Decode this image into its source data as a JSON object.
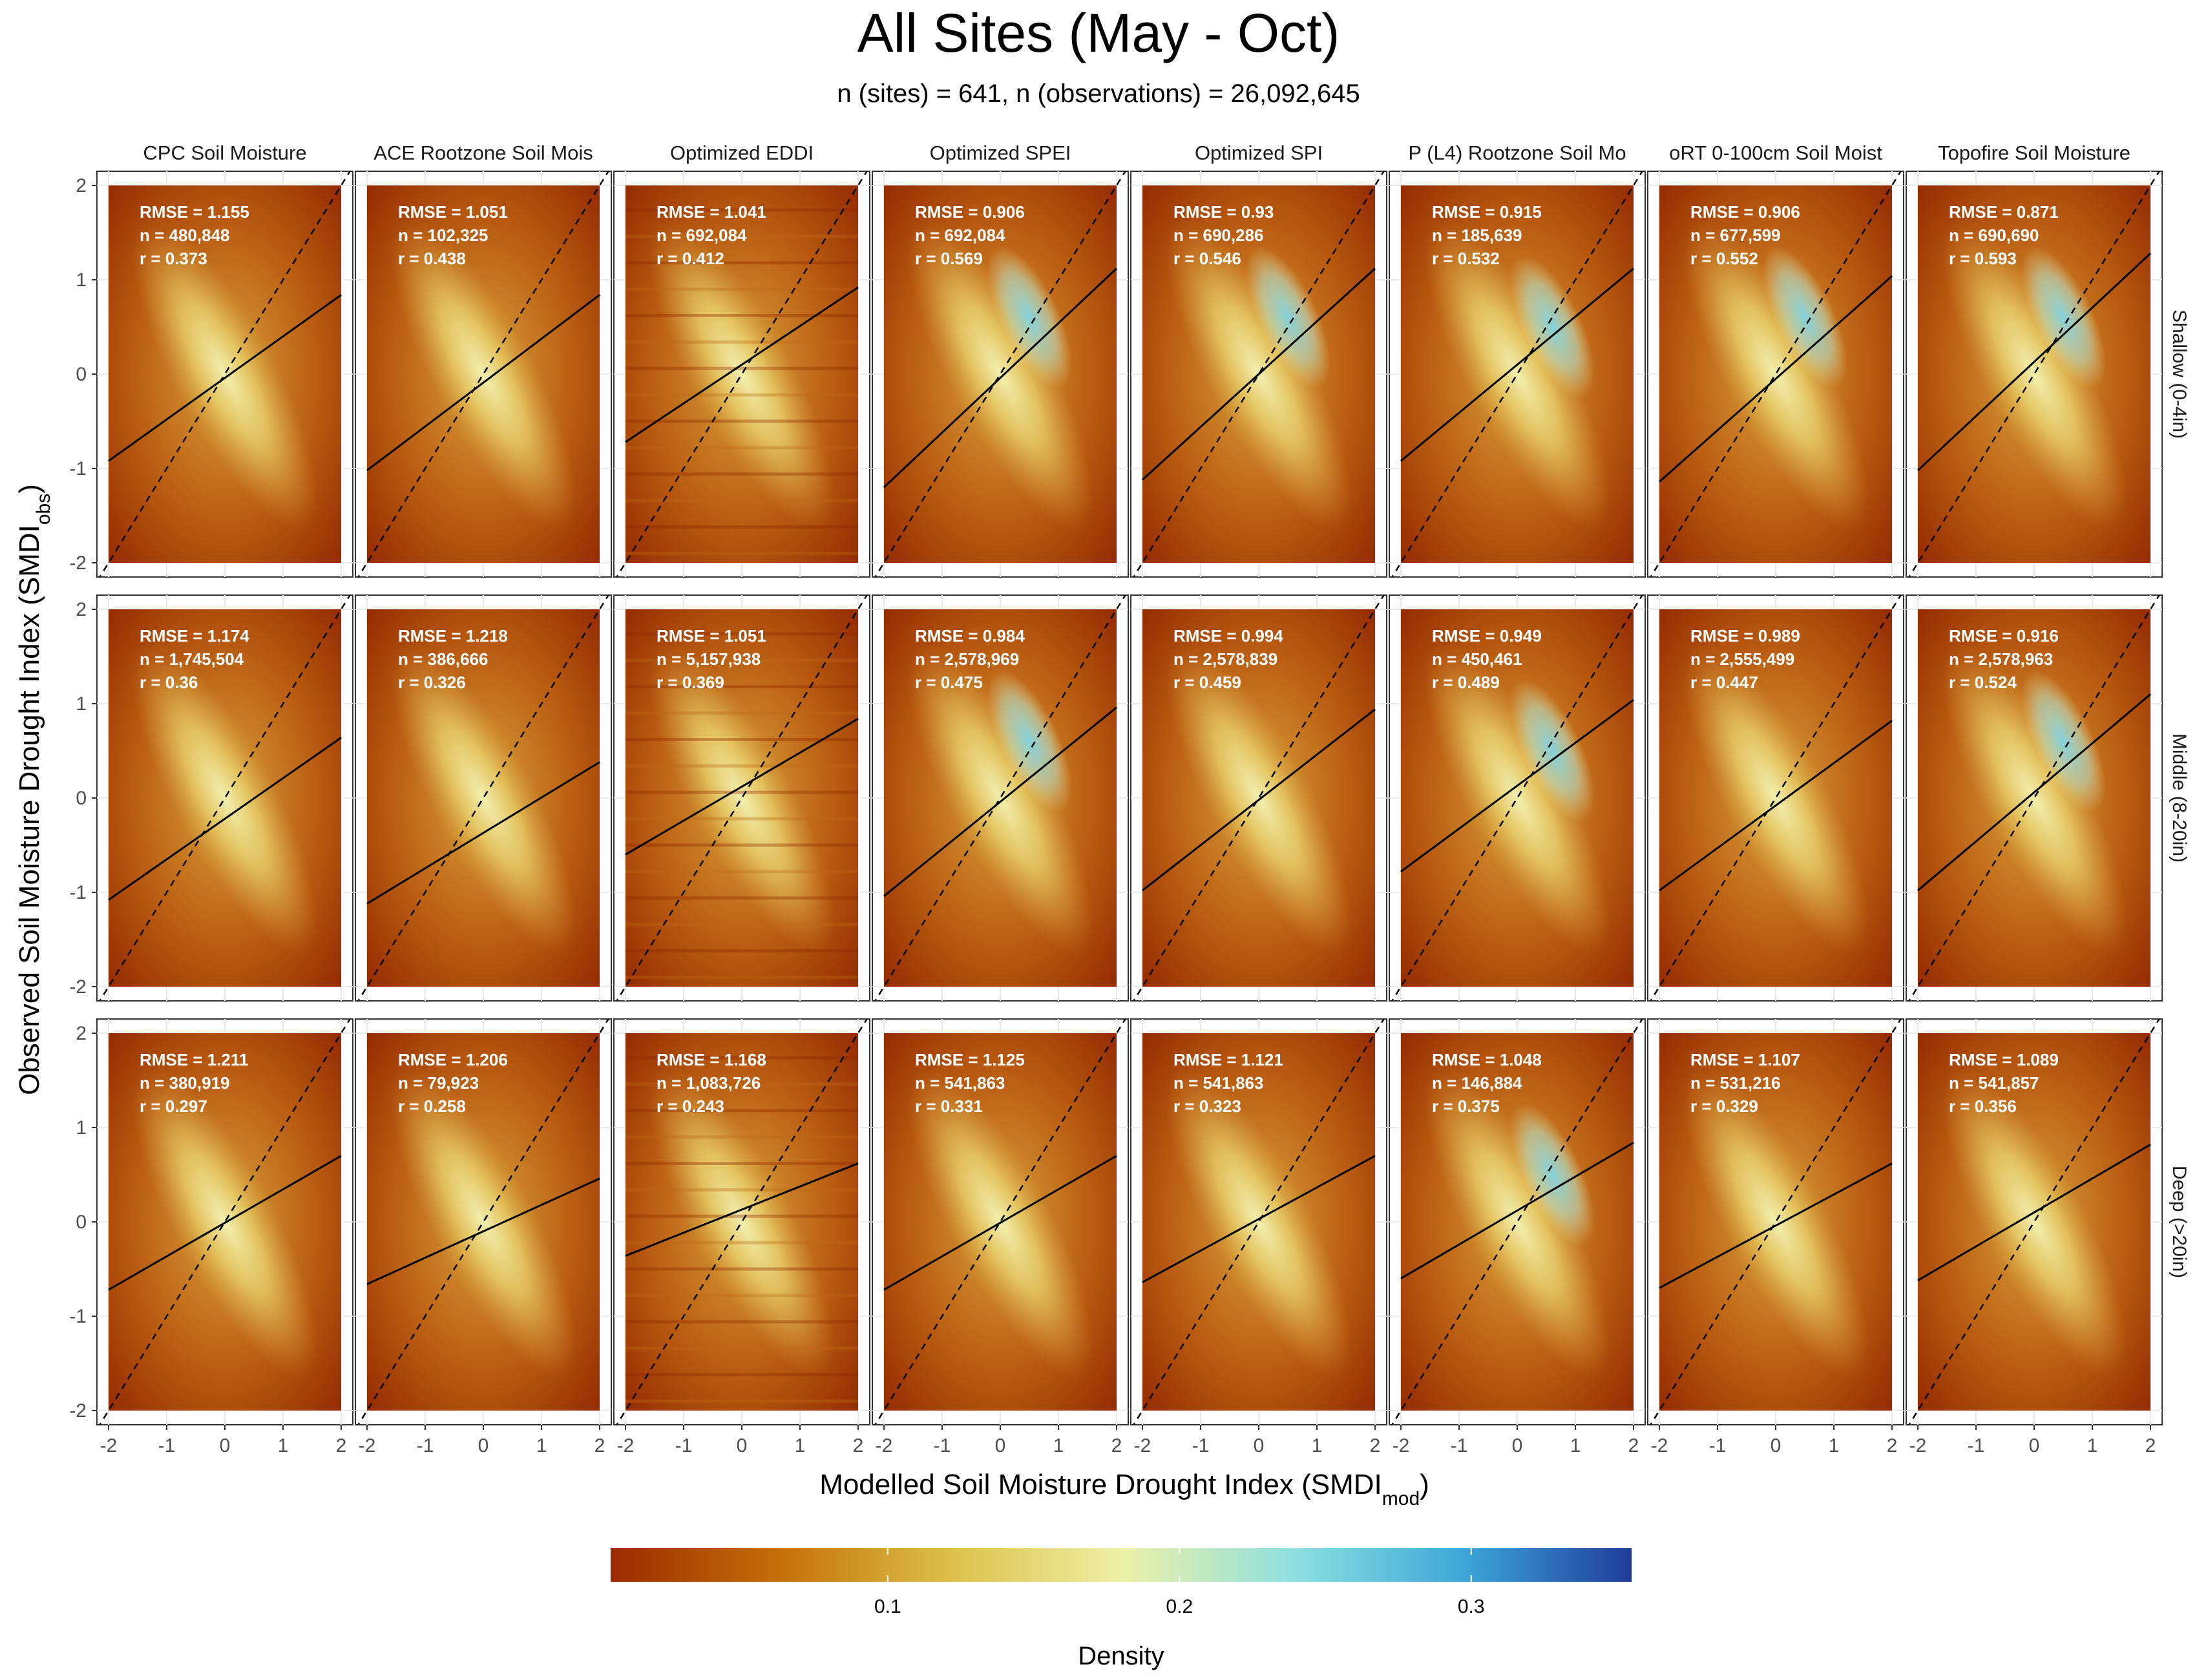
{
  "title": "All Sites (May - Oct)",
  "subtitle": "n (sites) = 641, n (observations) = 26,092,645",
  "chart_data": {
    "type": "heatmap",
    "title": "All Sites (May - Oct)",
    "subtitle": "n (sites) = 641, n (observations) = 26,092,645",
    "xlabel": "Modelled Soil Moisture Drought Index (",
    "xlabel_sym": "SMDI",
    "xlabel_sub": "mod",
    "xlabel_close": ")",
    "ylabel": "Observed Soil Moisture Drought Index (",
    "ylabel_sym": "SMDI",
    "ylabel_sub": "obs",
    "ylabel_close": ")",
    "xlim": [
      -2,
      2
    ],
    "ylim": [
      -2,
      2
    ],
    "ticks": [
      "-2",
      "-1",
      "0",
      "1",
      "2"
    ],
    "columns": [
      "CPC Soil Moisture",
      "ACE Rootzone Soil Mois",
      "Optimized EDDI",
      "Optimized SPEI",
      "Optimized SPI",
      "P (L4) Rootzone Soil Mo",
      "oRT 0-100cm Soil Moist",
      "Topofire Soil Moisture"
    ],
    "rows": [
      "Shallow (0-4in)",
      "Middle (8-20in)",
      "Deep (>20in)"
    ],
    "reference_line": "1:1 (dashed)",
    "panels": [
      [
        {
          "rmse": "1.155",
          "n": "480,848",
          "r": "0.373",
          "fit": [
            -2,
            -0.92,
            2,
            0.84
          ]
        },
        {
          "rmse": "1.051",
          "n": "102,325",
          "r": "0.438",
          "fit": [
            -2,
            -1.02,
            2,
            0.84
          ]
        },
        {
          "rmse": "1.041",
          "n": "692,084",
          "r": "0.412",
          "fit": [
            -2,
            -0.72,
            2,
            0.92
          ]
        },
        {
          "rmse": "0.906",
          "n": "692,084",
          "r": "0.569",
          "fit": [
            -2,
            -1.2,
            2,
            1.12
          ]
        },
        {
          "rmse": "0.93",
          "n": "690,286",
          "r": "0.546",
          "fit": [
            -2,
            -1.12,
            2,
            1.12
          ]
        },
        {
          "rmse": "0.915",
          "n": "185,639",
          "r": "0.532",
          "fit": [
            -2,
            -0.92,
            2,
            1.12
          ]
        },
        {
          "rmse": "0.906",
          "n": "677,599",
          "r": "0.552",
          "fit": [
            -2,
            -1.14,
            2,
            1.04
          ]
        },
        {
          "rmse": "0.871",
          "n": "690,690",
          "r": "0.593",
          "fit": [
            -2,
            -1.02,
            2,
            1.28
          ]
        }
      ],
      [
        {
          "rmse": "1.174",
          "n": "1,745,504",
          "r": "0.36",
          "fit": [
            -2,
            -1.08,
            2,
            0.64
          ]
        },
        {
          "rmse": "1.218",
          "n": "386,666",
          "r": "0.326",
          "fit": [
            -2,
            -1.12,
            2,
            0.38
          ]
        },
        {
          "rmse": "1.051",
          "n": "5,157,938",
          "r": "0.369",
          "fit": [
            -2,
            -0.6,
            2,
            0.84
          ]
        },
        {
          "rmse": "0.984",
          "n": "2,578,969",
          "r": "0.475",
          "fit": [
            -2,
            -1.04,
            2,
            0.96
          ]
        },
        {
          "rmse": "0.994",
          "n": "2,578,839",
          "r": "0.459",
          "fit": [
            -2,
            -0.98,
            2,
            0.94
          ]
        },
        {
          "rmse": "0.949",
          "n": "450,461",
          "r": "0.489",
          "fit": [
            -2,
            -0.78,
            2,
            1.04
          ]
        },
        {
          "rmse": "0.989",
          "n": "2,555,499",
          "r": "0.447",
          "fit": [
            -2,
            -0.98,
            2,
            0.82
          ]
        },
        {
          "rmse": "0.916",
          "n": "2,578,963",
          "r": "0.524",
          "fit": [
            -2,
            -0.98,
            2,
            1.1
          ]
        }
      ],
      [
        {
          "rmse": "1.211",
          "n": "380,919",
          "r": "0.297",
          "fit": [
            -2,
            -0.72,
            2,
            0.7
          ]
        },
        {
          "rmse": "1.206",
          "n": "79,923",
          "r": "0.258",
          "fit": [
            -2,
            -0.66,
            2,
            0.46
          ]
        },
        {
          "rmse": "1.168",
          "n": "1,083,726",
          "r": "0.243",
          "fit": [
            -2,
            -0.36,
            2,
            0.62
          ]
        },
        {
          "rmse": "1.125",
          "n": "541,863",
          "r": "0.331",
          "fit": [
            -2,
            -0.72,
            2,
            0.7
          ]
        },
        {
          "rmse": "1.121",
          "n": "541,863",
          "r": "0.323",
          "fit": [
            -2,
            -0.64,
            2,
            0.7
          ]
        },
        {
          "rmse": "1.048",
          "n": "146,884",
          "r": "0.375",
          "fit": [
            -2,
            -0.6,
            2,
            0.84
          ]
        },
        {
          "rmse": "1.107",
          "n": "531,216",
          "r": "0.329",
          "fit": [
            -2,
            -0.7,
            2,
            0.62
          ]
        },
        {
          "rmse": "1.089",
          "n": "541,857",
          "r": "0.356",
          "fit": [
            -2,
            -0.62,
            2,
            0.82
          ]
        }
      ]
    ],
    "colorbar": {
      "title": "Density",
      "ticks": [
        {
          "value": 0.1,
          "label": "0.1"
        },
        {
          "value": 0.2,
          "label": "0.2"
        },
        {
          "value": 0.3,
          "label": "0.3"
        }
      ],
      "range": [
        0.005,
        0.355
      ],
      "colors": [
        "#9b2a00",
        "#c5700a",
        "#dcc04a",
        "#eef0a6",
        "#8fe0e0",
        "#3ea8d8",
        "#1f3c9a"
      ]
    }
  }
}
